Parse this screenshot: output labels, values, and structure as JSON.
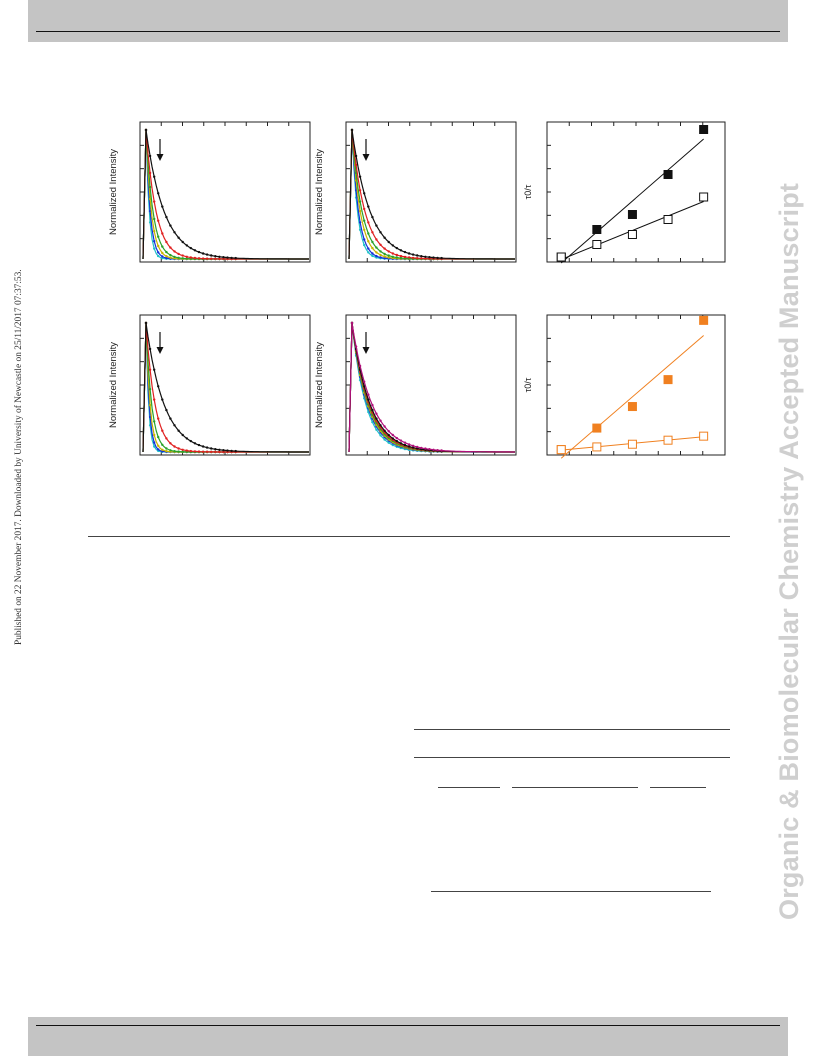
{
  "publish_note": "Published on 22 November 2017. Downloaded by University of Newcastle on 25/11/2017 07:37:53.",
  "watermark": "Organic & Biomolecular Chemistry Accepted Manuscript",
  "colors": {
    "black": "#111111",
    "red": "#e02020",
    "green": "#2aa12a",
    "yellow": "#c8b400",
    "blue": "#1530d8",
    "cyan": "#1ec0c8",
    "magenta": "#b0107a",
    "orange": "#f08020"
  },
  "chart_data": [
    {
      "type": "line",
      "panel": "top-left",
      "ylabel": "Normalized Intensity",
      "series_colors": [
        "black",
        "red",
        "green",
        "yellow",
        "blue",
        "cyan"
      ],
      "decay_rates": [
        1.0,
        1.8,
        2.6,
        3.4,
        4.4,
        5.6
      ]
    },
    {
      "type": "line",
      "panel": "top-middle",
      "ylabel": "Normalized Intensity",
      "series_colors": [
        "black",
        "red",
        "green",
        "yellow",
        "blue",
        "cyan"
      ],
      "decay_rates": [
        1.0,
        1.4,
        1.8,
        2.2,
        2.8,
        3.3
      ]
    },
    {
      "type": "scatter",
      "panel": "top-right",
      "ylabel": "τ0/τ",
      "series": [
        {
          "marker": "filled-square",
          "color": "black",
          "x": [
            0,
            1,
            2,
            3,
            4
          ],
          "y": [
            1.0,
            2.1,
            2.7,
            4.3,
            6.1
          ]
        },
        {
          "marker": "open-square",
          "color": "black",
          "x": [
            0,
            1,
            2,
            3,
            4
          ],
          "y": [
            1.0,
            1.5,
            1.9,
            2.5,
            3.4
          ]
        }
      ],
      "ylim": [
        0.8,
        6.4
      ],
      "xlim": [
        -0.4,
        4.6
      ]
    },
    {
      "type": "line",
      "panel": "bottom-left",
      "ylabel": "Normalized Intensity",
      "series_colors": [
        "black",
        "red",
        "green",
        "yellow",
        "blue",
        "cyan"
      ],
      "decay_rates": [
        1.0,
        2.0,
        3.2,
        4.5,
        5.8,
        7.0
      ]
    },
    {
      "type": "line",
      "panel": "bottom-middle",
      "ylabel": "Normalized Intensity",
      "series_colors": [
        "magenta",
        "black",
        "red",
        "green",
        "yellow",
        "blue",
        "cyan"
      ],
      "decay_rates": [
        0.9,
        1.0,
        1.05,
        1.1,
        1.15,
        1.2,
        1.3
      ]
    },
    {
      "type": "scatter",
      "panel": "bottom-right",
      "ylabel": "τ0/τ",
      "series": [
        {
          "marker": "filled-square",
          "color": "orange",
          "x": [
            0,
            1,
            2,
            3,
            4
          ],
          "y": [
            1.0,
            1.8,
            2.6,
            3.6,
            5.8
          ]
        },
        {
          "marker": "open-square",
          "color": "orange",
          "x": [
            0,
            1,
            2,
            3,
            4
          ],
          "y": [
            1.0,
            1.1,
            1.2,
            1.35,
            1.5
          ]
        }
      ],
      "ylim": [
        0.8,
        6.0
      ],
      "xlim": [
        -0.4,
        4.6
      ]
    }
  ]
}
